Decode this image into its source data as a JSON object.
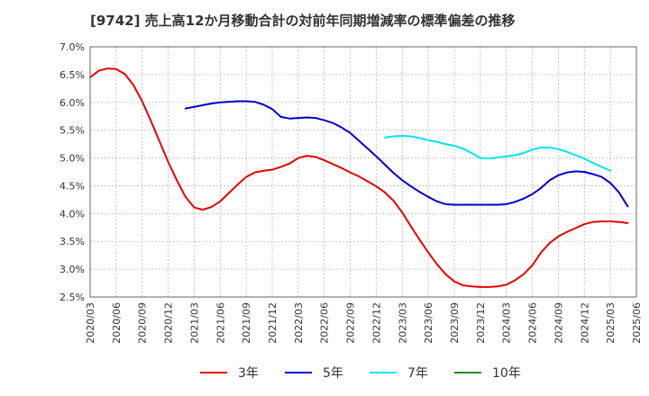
{
  "title": "[9742]  売上高12か月移動合計の対前年同期増減率の標準偏差の推移",
  "chart_data": {
    "type": "line",
    "title": "[9742]  売上高12か月移動合計の対前年同期増減率の標準偏差の推移",
    "xlabel": "",
    "ylabel": "",
    "ylim": [
      2.5,
      7.0
    ],
    "grid": true,
    "legend_position": "bottom",
    "y_ticks": [
      "7.0%",
      "6.5%",
      "6.0%",
      "5.5%",
      "5.0%",
      "4.5%",
      "4.0%",
      "3.5%",
      "3.0%",
      "2.5%"
    ],
    "x_ticks": [
      "2020/03",
      "2020/06",
      "2020/09",
      "2020/12",
      "2021/03",
      "2021/06",
      "2021/09",
      "2021/12",
      "2022/03",
      "2022/06",
      "2022/09",
      "2022/12",
      "2023/03",
      "2023/06",
      "2023/09",
      "2023/12",
      "2024/03",
      "2024/06",
      "2024/09",
      "2024/12",
      "2025/03",
      "2025/06"
    ],
    "series": [
      {
        "name": "3年",
        "color": "#e60000",
        "start": "2020/03",
        "values": [
          6.45,
          6.57,
          6.61,
          6.6,
          6.51,
          6.31,
          6.02,
          5.67,
          5.3,
          4.93,
          4.6,
          4.3,
          4.11,
          4.07,
          4.12,
          4.22,
          4.37,
          4.52,
          4.66,
          4.74,
          4.77,
          4.79,
          4.84,
          4.9,
          5.0,
          5.04,
          5.02,
          4.96,
          4.89,
          4.82,
          4.74,
          4.67,
          4.58,
          4.49,
          4.38,
          4.23,
          4.02,
          3.77,
          3.53,
          3.3,
          3.09,
          2.91,
          2.78,
          2.71,
          2.69,
          2.68,
          2.68,
          2.69,
          2.72,
          2.8,
          2.91,
          3.07,
          3.3,
          3.47,
          3.59,
          3.67,
          3.74,
          3.81,
          3.85,
          3.86,
          3.86,
          3.85,
          3.83
        ]
      },
      {
        "name": "5年",
        "color": "#0000cc",
        "start": "2021/02",
        "values": [
          5.89,
          5.92,
          5.95,
          5.98,
          6.0,
          6.01,
          6.02,
          6.02,
          6.01,
          5.96,
          5.88,
          5.74,
          5.71,
          5.72,
          5.73,
          5.72,
          5.68,
          5.63,
          5.55,
          5.45,
          5.31,
          5.17,
          5.03,
          4.88,
          4.73,
          4.6,
          4.49,
          4.39,
          4.3,
          4.22,
          4.17,
          4.16,
          4.16,
          4.16,
          4.16,
          4.16,
          4.16,
          4.17,
          4.21,
          4.27,
          4.35,
          4.46,
          4.6,
          4.69,
          4.74,
          4.76,
          4.75,
          4.71,
          4.66,
          4.55,
          4.38,
          4.13
        ]
      },
      {
        "name": "7年",
        "color": "#00e5ee",
        "start": "2023/01",
        "values": [
          5.37,
          5.39,
          5.4,
          5.39,
          5.36,
          5.32,
          5.29,
          5.25,
          5.22,
          5.17,
          5.09,
          5.0,
          4.99,
          5.01,
          5.03,
          5.05,
          5.09,
          5.15,
          5.19,
          5.19,
          5.16,
          5.11,
          5.05,
          4.99,
          4.91,
          4.84,
          4.77
        ]
      },
      {
        "name": "10年",
        "color": "#228b22",
        "start": "2025/03",
        "values": []
      }
    ]
  }
}
